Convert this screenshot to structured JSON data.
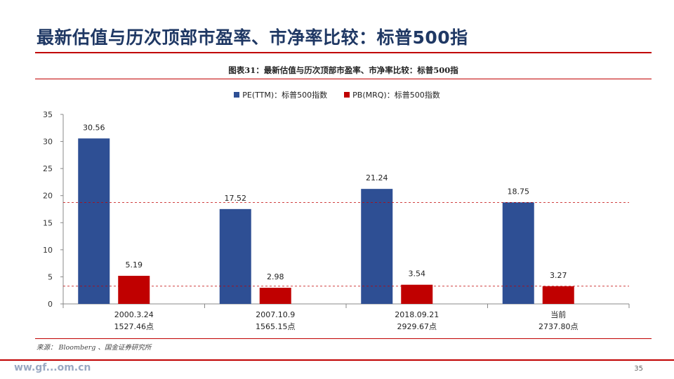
{
  "slide": {
    "title": "最新估值与历次顶部市盈率、市净率比较：标普500指",
    "page_number": "35",
    "footer_brand": "ww.gf...om.cn"
  },
  "figure": {
    "caption": "图表31：最新估值与历次顶部市盈率、市净率比较：标普500指",
    "source": "来源： Bloomberg 、国金证券研究所"
  },
  "colors": {
    "pe": "#2e4f94",
    "pb": "#c00000",
    "accent_rule": "#c00000",
    "title": "#1f3864"
  },
  "chart_data": {
    "type": "bar",
    "title": "图表31：最新估值与历次顶部市盈率、市净率比较：标普500指",
    "categories": [
      {
        "date": "2000.3.24",
        "index": "1527.46点"
      },
      {
        "date": "2007.10.9",
        "index": "1565.15点"
      },
      {
        "date": "2018.09.21",
        "index": "2929.67点"
      },
      {
        "date": "当前",
        "index": "2737.80点"
      }
    ],
    "series": [
      {
        "name": "PE(TTM)：标普500指数",
        "values": [
          30.56,
          17.52,
          21.24,
          18.75
        ],
        "labels": [
          "30.56",
          "17.52",
          "21.24",
          "18.75"
        ],
        "color": "#2e4f94"
      },
      {
        "name": "PB(MRQ)：标普500指数",
        "values": [
          5.19,
          2.98,
          3.54,
          3.27
        ],
        "labels": [
          "5.19",
          "2.98",
          "3.54",
          "3.27"
        ],
        "color": "#c00000"
      }
    ],
    "ylim": [
      0,
      35
    ],
    "yticks": [
      "0",
      "5",
      "10",
      "15",
      "20",
      "25",
      "30",
      "35"
    ],
    "reference_lines": [
      {
        "series": "PE(TTM)",
        "value": 18.75,
        "style": "dashed"
      },
      {
        "series": "PB(MRQ)",
        "value": 3.27,
        "style": "dashed"
      }
    ],
    "legend_position": "top-center",
    "xlabel": "",
    "ylabel": ""
  }
}
